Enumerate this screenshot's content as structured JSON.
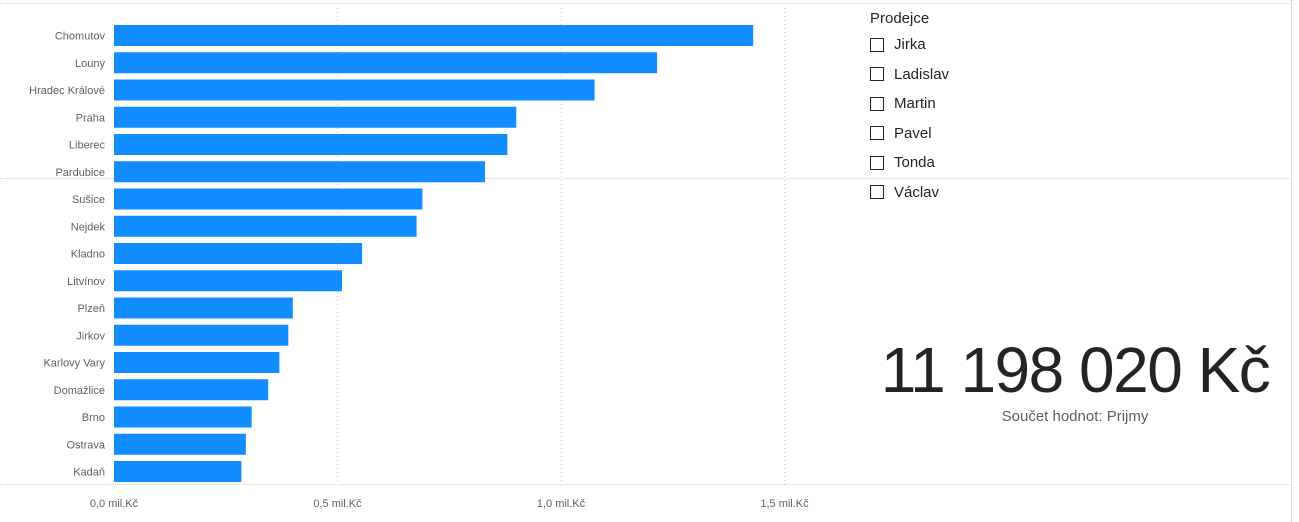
{
  "chart_data": {
    "type": "bar",
    "orientation": "horizontal",
    "categories": [
      "Chomutov",
      "Louny",
      "Hradec Králové",
      "Praha",
      "Liberec",
      "Pardubice",
      "Sušice",
      "Nejdek",
      "Kladno",
      "Litvínov",
      "Plzeň",
      "Jirkov",
      "Karlovy Vary",
      "Domažlice",
      "Brno",
      "Ostrava",
      "Kadaň"
    ],
    "values": [
      1.43,
      1.215,
      1.075,
      0.9,
      0.88,
      0.83,
      0.69,
      0.677,
      0.555,
      0.51,
      0.4,
      0.39,
      0.37,
      0.345,
      0.308,
      0.295,
      0.285
    ],
    "xlim": [
      0,
      1.5
    ],
    "xticks": [
      0,
      0.5,
      1.0,
      1.5
    ],
    "xtick_labels": [
      "0,0 mil.Kč",
      "0,5 mil.Kč",
      "1,0 mil.Kč",
      "1,5 mil.Kč"
    ],
    "bar_color": "#118DFF",
    "grid": "vertical dotted",
    "title": "",
    "xlabel": "",
    "ylabel": ""
  },
  "slicer": {
    "title": "Prodejce",
    "items": [
      "Jirka",
      "Ladislav",
      "Martin",
      "Pavel",
      "Tonda",
      "Václav"
    ]
  },
  "card": {
    "value": "11 198 020 Kč",
    "label": "Součet hodnot: Prijmy"
  }
}
